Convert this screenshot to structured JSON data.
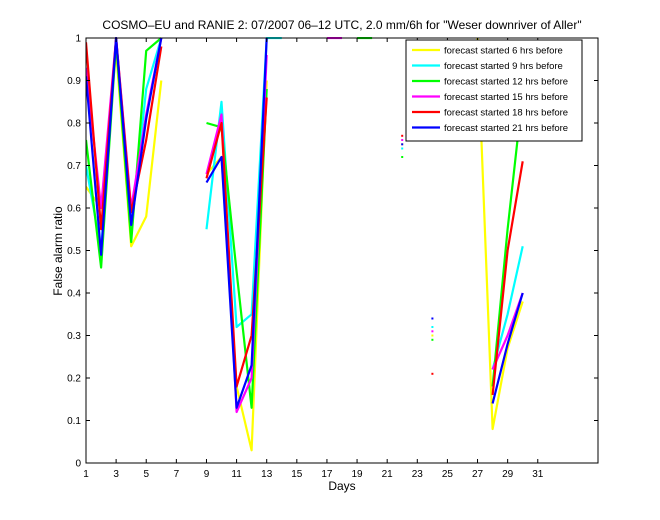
{
  "chart_data": {
    "type": "line",
    "title": "COSMO–EU and RANIE 2: 07/2007 06–12 UTC, 2.0 mm/6h for \"Weser downriver of Aller\"",
    "xlabel": "Days",
    "ylabel": "False alarm ratio",
    "xlim": [
      1,
      35
    ],
    "ylim": [
      0,
      1
    ],
    "x_ticks": [
      1,
      3,
      5,
      7,
      9,
      11,
      13,
      15,
      17,
      19,
      21,
      23,
      25,
      27,
      29,
      31
    ],
    "y_ticks": [
      0,
      0.1,
      0.2,
      0.3,
      0.4,
      0.5,
      0.6,
      0.7,
      0.8,
      0.9,
      1
    ],
    "legend_position": "top-right",
    "grid": false,
    "series": [
      {
        "name": "forecast started 6 hrs before",
        "color": "#ffff00",
        "segments": [
          [
            [
              1,
              0.65
            ],
            [
              2,
              0.6
            ],
            [
              3,
              0.97
            ],
            [
              4,
              0.51
            ],
            [
              5,
              0.58
            ],
            [
              6,
              0.9
            ]
          ],
          [
            [
              9,
              0.68
            ],
            [
              10,
              0.72
            ],
            [
              11,
              0.18
            ],
            [
              12,
              0.03
            ],
            [
              13,
              0.9
            ]
          ],
          [
            [
              27,
              1.0
            ],
            [
              28,
              0.08
            ],
            [
              29,
              0.27
            ],
            [
              30,
              0.38
            ]
          ]
        ],
        "points": [
          [
            22,
            0.75
          ],
          [
            24,
            0.3
          ]
        ]
      },
      {
        "name": "forecast started 9 hrs before",
        "color": "#00ffff",
        "segments": [
          [
            [
              1,
              0.7
            ],
            [
              2,
              0.5
            ],
            [
              3,
              1.0
            ],
            [
              4,
              0.55
            ],
            [
              5,
              0.88
            ],
            [
              6,
              1.0
            ]
          ],
          [
            [
              9,
              0.55
            ],
            [
              10,
              0.85
            ],
            [
              11,
              0.32
            ],
            [
              12,
              0.35
            ],
            [
              13,
              1.0
            ],
            [
              14,
              1.0
            ]
          ],
          [
            [
              28,
              0.22
            ],
            [
              29,
              0.35
            ],
            [
              30,
              0.51
            ]
          ]
        ],
        "points": [
          [
            22,
            0.74
          ],
          [
            24,
            0.32
          ]
        ]
      },
      {
        "name": "forecast started 12 hrs before",
        "color": "#00ff00",
        "segments": [
          [
            [
              1,
              0.76
            ],
            [
              2,
              0.46
            ],
            [
              3,
              0.99
            ],
            [
              4,
              0.52
            ],
            [
              5,
              0.97
            ],
            [
              6,
              1.0
            ]
          ],
          [
            [
              9,
              0.8
            ],
            [
              10,
              0.79
            ],
            [
              11,
              0.45
            ],
            [
              12,
              0.13
            ],
            [
              13,
              0.88
            ]
          ],
          [
            [
              19,
              1.0
            ],
            [
              20,
              1.0
            ]
          ],
          [
            [
              28,
              0.18
            ],
            [
              29,
              0.55
            ],
            [
              30,
              0.87
            ]
          ]
        ],
        "points": [
          [
            22,
            0.72
          ],
          [
            24,
            0.29
          ]
        ]
      },
      {
        "name": "forecast started 15 hrs before",
        "color": "#ff00ff",
        "segments": [
          [
            [
              1,
              0.93
            ],
            [
              2,
              0.6
            ],
            [
              3,
              1.0
            ],
            [
              4,
              0.6
            ],
            [
              5,
              0.82
            ],
            [
              6,
              1.0
            ]
          ],
          [
            [
              9,
              0.68
            ],
            [
              10,
              0.82
            ],
            [
              11,
              0.12
            ],
            [
              12,
              0.2
            ],
            [
              13,
              0.96
            ]
          ],
          [
            [
              17,
              1.0
            ],
            [
              18,
              1.0
            ]
          ],
          [
            [
              28,
              0.22
            ],
            [
              29,
              0.3
            ],
            [
              30,
              0.4
            ]
          ]
        ],
        "points": [
          [
            22,
            0.76
          ],
          [
            24,
            0.31
          ]
        ]
      },
      {
        "name": "forecast started 18 hrs before",
        "color": "#ff0000",
        "segments": [
          [
            [
              1,
              0.99
            ],
            [
              2,
              0.55
            ],
            [
              3,
              1.0
            ],
            [
              4,
              0.59
            ],
            [
              5,
              0.76
            ],
            [
              6,
              0.98
            ]
          ],
          [
            [
              9,
              0.67
            ],
            [
              10,
              0.8
            ],
            [
              11,
              0.18
            ],
            [
              12,
              0.3
            ],
            [
              13,
              0.86
            ]
          ],
          [
            [
              28,
              0.16
            ],
            [
              29,
              0.5
            ],
            [
              30,
              0.71
            ]
          ]
        ],
        "points": [
          [
            22,
            0.77
          ],
          [
            24,
            0.21
          ]
        ]
      },
      {
        "name": "forecast started 21 hrs before",
        "color": "#0000ff",
        "segments": [
          [
            [
              1,
              0.91
            ],
            [
              2,
              0.49
            ],
            [
              3,
              1.0
            ],
            [
              4,
              0.56
            ],
            [
              5,
              0.81
            ],
            [
              6,
              1.0
            ]
          ],
          [
            [
              9,
              0.66
            ],
            [
              10,
              0.72
            ],
            [
              11,
              0.13
            ],
            [
              12,
              0.23
            ],
            [
              13,
              1.0
            ]
          ],
          [
            [
              28,
              0.14
            ],
            [
              29,
              0.28
            ],
            [
              30,
              0.4
            ]
          ]
        ],
        "points": [
          [
            22,
            0.75
          ],
          [
            24,
            0.34
          ]
        ]
      }
    ]
  }
}
